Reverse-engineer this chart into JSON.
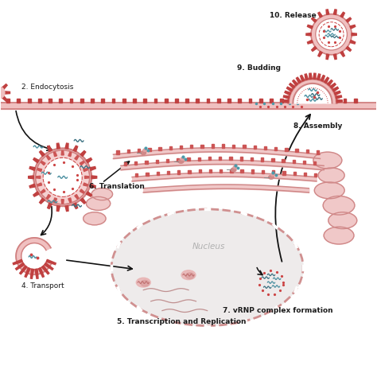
{
  "bg_color": "#ffffff",
  "membrane_fill": "#f0c0c0",
  "membrane_stroke": "#d08080",
  "membrane_fill2": "#f5d0d0",
  "spike_color": "#c04040",
  "spike_color2": "#cc5555",
  "rnp_color1": "#4a8fa0",
  "rnp_color2": "#3a7080",
  "dot_color": "#cc4444",
  "dot_color2": "#8b3030",
  "teal_color": "#4a9aaa",
  "nucleus_fill": "#eeebeb",
  "nucleus_stroke": "#d09090",
  "er_fill": "#f0c8c8",
  "er_stroke": "#d08888",
  "text_color": "#1a1a1a",
  "arrow_color": "#111111",
  "label_2": "2. Endocytosis",
  "label_4": "4. Transport",
  "label_5": "5. Transcription and Replication",
  "label_6": "6. Translation",
  "label_7": "7. vRNP complex formation",
  "label_8": "8. Assembly",
  "label_9": "9. Budding",
  "label_10": "10. Release",
  "nucleus_label": "Nucleus",
  "font_size": 6.5,
  "font_size_bold": 6.5
}
